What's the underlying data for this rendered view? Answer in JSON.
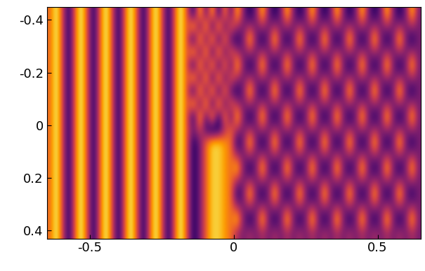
{
  "chart_data": {
    "type": "heatmap",
    "xlim": [
      -0.65,
      0.65
    ],
    "xticks": [
      -0.5,
      0,
      0.5
    ],
    "ylim": [
      0.43,
      -0.45
    ],
    "yticks": [
      -0.4,
      -0.2,
      0,
      0.2,
      0.4
    ],
    "color": "inferno",
    "color_range": [
      0,
      9
    ],
    "cells": [
      [
        6,
        9,
        5,
        1,
        6,
        9,
        5,
        1,
        6,
        9,
        5,
        1,
        6,
        9,
        5,
        1,
        6,
        9,
        5,
        1,
        6,
        9,
        5,
        1,
        8,
        2,
        8,
        1,
        7,
        2,
        8,
        3,
        1,
        3,
        8,
        3,
        1,
        3,
        8,
        3,
        1,
        3,
        8,
        3,
        1,
        3,
        8,
        3,
        1,
        3,
        8,
        3,
        1,
        3,
        8,
        3,
        1,
        3,
        8,
        3
      ],
      [
        6,
        9,
        5,
        1,
        6,
        9,
        5,
        1,
        6,
        9,
        5,
        1,
        6,
        9,
        5,
        1,
        6,
        9,
        5,
        1,
        6,
        9,
        5,
        8,
        2,
        8,
        1,
        8,
        2,
        6,
        4,
        3,
        4,
        3,
        4,
        3,
        4,
        3,
        4,
        3,
        4,
        3,
        4,
        3,
        4,
        3,
        4,
        3,
        4,
        3,
        4,
        3,
        4,
        3,
        4,
        3,
        4,
        3,
        4,
        3
      ],
      [
        6,
        9,
        5,
        1,
        6,
        9,
        5,
        1,
        6,
        9,
        5,
        1,
        6,
        9,
        5,
        1,
        6,
        9,
        5,
        1,
        6,
        9,
        5,
        1,
        8,
        2,
        8,
        1,
        7,
        2,
        1,
        3,
        8,
        3,
        1,
        3,
        8,
        3,
        1,
        3,
        8,
        3,
        1,
        3,
        8,
        3,
        1,
        3,
        8,
        3,
        1,
        3,
        8,
        3,
        1,
        3,
        8,
        3,
        1,
        3
      ],
      [
        6,
        9,
        5,
        1,
        6,
        9,
        5,
        1,
        6,
        9,
        5,
        1,
        6,
        9,
        5,
        1,
        6,
        9,
        5,
        1,
        6,
        9,
        5,
        8,
        2,
        8,
        1,
        8,
        2,
        6,
        4,
        3,
        4,
        3,
        4,
        3,
        4,
        3,
        4,
        3,
        4,
        3,
        4,
        3,
        4,
        3,
        4,
        3,
        4,
        3,
        4,
        3,
        4,
        3,
        4,
        3,
        4,
        3,
        4,
        3
      ],
      [
        6,
        9,
        5,
        1,
        6,
        9,
        5,
        1,
        6,
        9,
        5,
        1,
        6,
        9,
        5,
        1,
        6,
        9,
        5,
        1,
        6,
        9,
        5,
        1,
        8,
        2,
        8,
        1,
        7,
        2,
        8,
        3,
        1,
        3,
        8,
        3,
        1,
        3,
        8,
        3,
        1,
        3,
        8,
        3,
        1,
        3,
        8,
        3,
        1,
        3,
        8,
        3,
        1,
        3,
        8,
        3,
        1,
        3,
        8,
        3
      ],
      [
        6,
        9,
        5,
        1,
        6,
        9,
        5,
        1,
        6,
        9,
        5,
        1,
        6,
        9,
        5,
        1,
        6,
        9,
        5,
        1,
        6,
        9,
        5,
        8,
        2,
        8,
        1,
        8,
        2,
        6,
        4,
        3,
        4,
        3,
        4,
        3,
        4,
        3,
        4,
        3,
        4,
        3,
        4,
        3,
        4,
        3,
        4,
        3,
        4,
        3,
        4,
        3,
        4,
        3,
        4,
        3,
        4,
        3,
        4,
        3
      ],
      [
        6,
        9,
        5,
        1,
        6,
        9,
        5,
        1,
        6,
        9,
        5,
        1,
        6,
        9,
        5,
        1,
        6,
        9,
        5,
        1,
        6,
        9,
        5,
        1,
        8,
        2,
        8,
        1,
        7,
        2,
        1,
        3,
        8,
        3,
        1,
        3,
        8,
        3,
        1,
        3,
        8,
        3,
        1,
        3,
        8,
        3,
        1,
        3,
        8,
        3,
        1,
        3,
        8,
        3,
        1,
        3,
        8,
        3,
        1,
        3
      ],
      [
        6,
        9,
        5,
        1,
        6,
        9,
        5,
        1,
        6,
        9,
        5,
        1,
        6,
        9,
        5,
        1,
        6,
        9,
        5,
        1,
        6,
        9,
        5,
        8,
        2,
        8,
        1,
        8,
        2,
        6,
        4,
        3,
        4,
        3,
        4,
        3,
        4,
        3,
        4,
        3,
        4,
        3,
        4,
        3,
        4,
        3,
        4,
        3,
        4,
        3,
        4,
        3,
        4,
        3,
        4,
        3,
        4,
        3,
        4,
        3
      ],
      [
        6,
        9,
        5,
        1,
        6,
        9,
        5,
        1,
        6,
        9,
        5,
        1,
        6,
        9,
        5,
        1,
        6,
        9,
        5,
        1,
        6,
        9,
        5,
        1,
        8,
        2,
        8,
        1,
        7,
        2,
        8,
        3,
        1,
        3,
        8,
        3,
        1,
        3,
        8,
        3,
        1,
        3,
        8,
        3,
        1,
        3,
        8,
        3,
        1,
        3,
        8,
        3,
        1,
        3,
        8,
        3,
        1,
        3,
        8,
        3
      ],
      [
        6,
        9,
        5,
        1,
        6,
        9,
        5,
        1,
        6,
        9,
        5,
        1,
        6,
        9,
        5,
        1,
        6,
        9,
        5,
        1,
        6,
        9,
        5,
        3,
        5,
        2,
        0,
        1,
        4,
        6,
        4,
        3,
        4,
        3,
        4,
        3,
        4,
        3,
        4,
        3,
        4,
        3,
        4,
        3,
        4,
        3,
        4,
        3,
        4,
        3,
        4,
        3,
        4,
        3,
        4,
        3,
        4,
        3,
        4,
        3
      ],
      [
        6,
        9,
        5,
        1,
        6,
        9,
        5,
        1,
        6,
        9,
        5,
        1,
        6,
        9,
        5,
        1,
        6,
        9,
        5,
        1,
        6,
        9,
        5,
        1,
        3,
        6,
        8,
        8,
        7,
        6,
        1,
        3,
        8,
        3,
        1,
        3,
        8,
        3,
        1,
        3,
        8,
        3,
        1,
        3,
        8,
        3,
        1,
        3,
        8,
        3,
        1,
        3,
        8,
        3,
        1,
        3,
        8,
        3,
        1,
        3
      ],
      [
        6,
        9,
        5,
        1,
        6,
        9,
        5,
        1,
        6,
        9,
        5,
        1,
        6,
        9,
        5,
        1,
        6,
        9,
        5,
        1,
        6,
        9,
        5,
        1,
        3,
        6,
        8,
        8,
        7,
        6,
        4,
        3,
        4,
        3,
        4,
        3,
        4,
        3,
        4,
        3,
        4,
        3,
        4,
        3,
        4,
        3,
        4,
        3,
        4,
        3,
        4,
        3,
        4,
        3,
        4,
        3,
        4,
        3,
        4,
        3
      ],
      [
        6,
        9,
        5,
        1,
        6,
        9,
        5,
        1,
        6,
        9,
        5,
        1,
        6,
        9,
        5,
        1,
        6,
        9,
        5,
        1,
        6,
        9,
        5,
        1,
        3,
        6,
        8,
        8,
        7,
        6,
        8,
        3,
        1,
        3,
        8,
        3,
        1,
        3,
        8,
        3,
        1,
        3,
        8,
        3,
        1,
        3,
        8,
        3,
        1,
        3,
        8,
        3,
        1,
        3,
        8,
        3,
        1,
        3,
        8,
        3
      ],
      [
        6,
        9,
        5,
        1,
        6,
        9,
        5,
        1,
        6,
        9,
        5,
        1,
        6,
        9,
        5,
        1,
        6,
        9,
        5,
        1,
        6,
        9,
        5,
        1,
        3,
        6,
        8,
        8,
        7,
        6,
        4,
        3,
        4,
        3,
        4,
        3,
        4,
        3,
        4,
        3,
        4,
        3,
        4,
        3,
        4,
        3,
        4,
        3,
        4,
        3,
        4,
        3,
        4,
        3,
        4,
        3,
        4,
        3,
        4,
        3
      ],
      [
        6,
        9,
        5,
        1,
        6,
        9,
        5,
        1,
        6,
        9,
        5,
        1,
        6,
        9,
        5,
        1,
        6,
        9,
        5,
        1,
        6,
        9,
        5,
        1,
        3,
        6,
        8,
        8,
        7,
        6,
        1,
        3,
        8,
        3,
        1,
        3,
        8,
        3,
        1,
        3,
        8,
        3,
        1,
        3,
        8,
        3,
        1,
        3,
        8,
        3,
        1,
        3,
        8,
        3,
        1,
        3,
        8,
        3,
        1,
        3
      ],
      [
        6,
        9,
        5,
        1,
        6,
        9,
        5,
        1,
        6,
        9,
        5,
        1,
        6,
        9,
        5,
        1,
        6,
        9,
        5,
        1,
        6,
        9,
        5,
        1,
        3,
        6,
        8,
        8,
        7,
        6,
        4,
        3,
        4,
        3,
        4,
        3,
        4,
        3,
        4,
        3,
        4,
        3,
        4,
        3,
        4,
        3,
        4,
        3,
        4,
        3,
        4,
        3,
        4,
        3,
        4,
        3,
        4,
        3,
        4,
        3
      ],
      [
        6,
        9,
        5,
        1,
        6,
        9,
        5,
        1,
        6,
        9,
        5,
        1,
        6,
        9,
        5,
        1,
        6,
        9,
        5,
        1,
        6,
        9,
        5,
        1,
        3,
        6,
        8,
        8,
        7,
        6,
        8,
        3,
        1,
        3,
        8,
        3,
        1,
        3,
        8,
        3,
        1,
        3,
        8,
        3,
        1,
        3,
        8,
        3,
        1,
        3,
        8,
        3,
        1,
        3,
        8,
        3,
        1,
        3,
        8,
        3
      ],
      [
        6,
        9,
        5,
        1,
        6,
        9,
        5,
        1,
        6,
        9,
        5,
        1,
        6,
        9,
        5,
        1,
        6,
        9,
        5,
        1,
        6,
        9,
        5,
        1,
        3,
        6,
        8,
        8,
        7,
        6,
        4,
        3,
        4,
        3,
        4,
        3,
        4,
        3,
        4,
        3,
        4,
        3,
        4,
        3,
        4,
        3,
        4,
        3,
        4,
        3,
        4,
        3,
        4,
        3,
        4,
        3,
        4,
        3,
        4,
        3
      ]
    ]
  }
}
